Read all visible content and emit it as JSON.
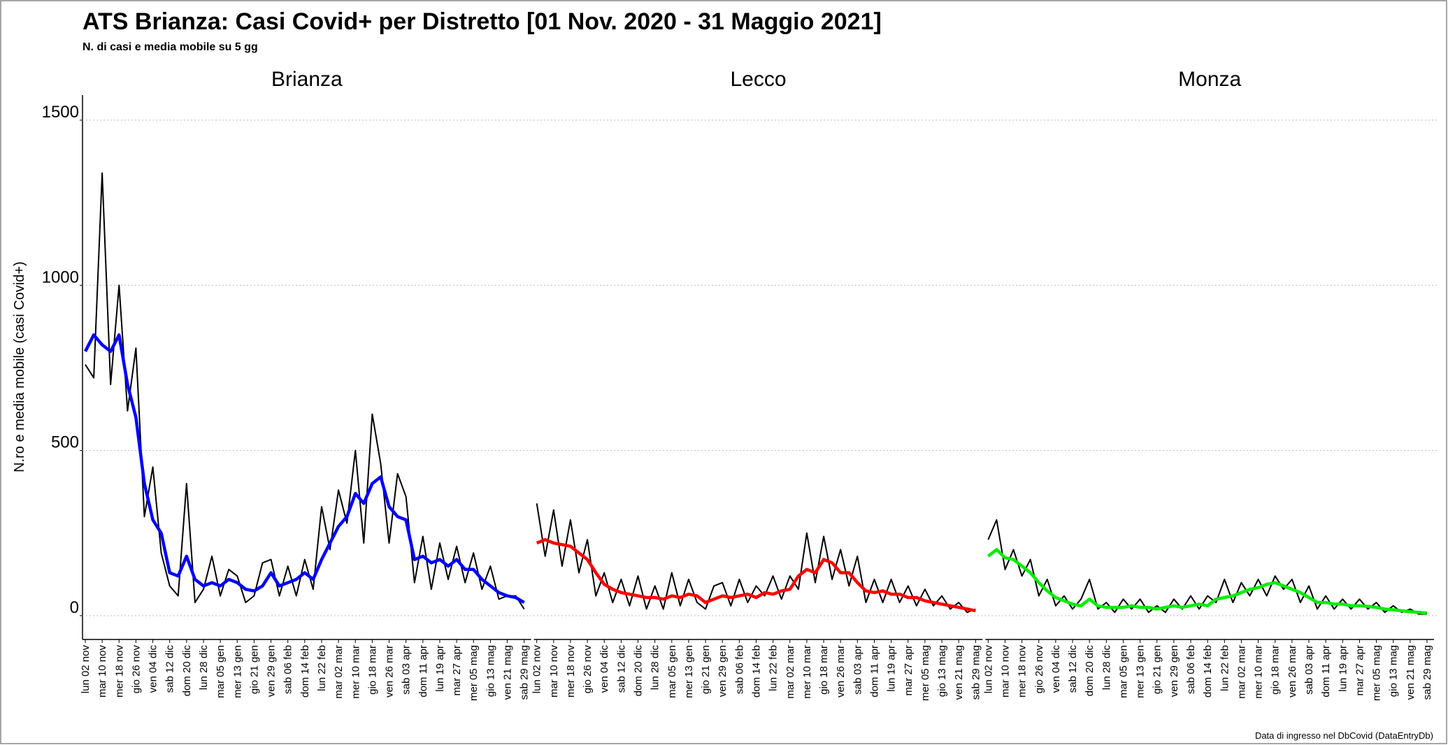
{
  "title": "ATS Brianza: Casi Covid+ per Distretto [01 Nov. 2020 - 31 Maggio 2021]",
  "subtitle": "N. di casi e media mobile su 5 gg",
  "footnote": "Data di ingresso nel DbCovid (DataEntryDb)",
  "y_axis": {
    "label": "N.ro e media mobile (casi Covid+)",
    "ylim": [
      -72,
      1576
    ],
    "yticks": [
      0,
      500,
      1000,
      1500
    ],
    "grid": true
  },
  "chart_data": [
    {
      "type": "line",
      "title": "Brianza",
      "categories": [
        "lun 02 nov",
        null,
        "mar 10 nov",
        null,
        "mer 18 nov",
        null,
        "gio 26 nov",
        null,
        "ven 04 dic",
        null,
        "sab 12 dic",
        null,
        "dom 20 dic",
        null,
        "lun 28 dic",
        null,
        "mar 05 gen",
        null,
        "mer 13 gen",
        null,
        "gio 21 gen",
        null,
        "ven 29 gen",
        null,
        "sab 06 feb",
        null,
        "dom 14 feb",
        null,
        "lun 22 feb",
        null,
        "mar 02 mar",
        null,
        "mer 10 mar",
        null,
        "gio 18 mar",
        null,
        "ven 26 mar",
        null,
        "sab 03 apr",
        null,
        "dom 11 apr",
        null,
        "lun 19 apr",
        null,
        "mar 27 apr",
        null,
        "mer 05 mag",
        null,
        "gio 13 mag",
        null,
        "ven 21 mag",
        null,
        "sab 29 mag"
      ],
      "series": [
        {
          "color": "#000000",
          "values": [
            760,
            720,
            1340,
            700,
            1000,
            620,
            810,
            300,
            450,
            190,
            90,
            60,
            400,
            40,
            80,
            180,
            60,
            140,
            120,
            40,
            60,
            160,
            170,
            60,
            150,
            60,
            170,
            80,
            330,
            200,
            380,
            280,
            500,
            220,
            610,
            460,
            220,
            430,
            360,
            100,
            240,
            80,
            220,
            110,
            210,
            100,
            190,
            80,
            150,
            50,
            60,
            60,
            20
          ]
        },
        {
          "color": "#0000ff",
          "values": [
            800,
            850,
            820,
            800,
            850,
            700,
            600,
            400,
            290,
            250,
            130,
            120,
            180,
            110,
            90,
            100,
            90,
            110,
            100,
            80,
            75,
            90,
            130,
            90,
            100,
            110,
            130,
            110,
            170,
            220,
            270,
            300,
            370,
            340,
            400,
            420,
            330,
            300,
            290,
            170,
            180,
            160,
            170,
            150,
            170,
            140,
            140,
            110,
            90,
            70,
            60,
            55,
            40
          ]
        }
      ]
    },
    {
      "type": "line",
      "title": "Lecco",
      "categories": [
        "lun 02 nov",
        null,
        "mar 10 nov",
        null,
        "mer 18 nov",
        null,
        "gio 26 nov",
        null,
        "ven 04 dic",
        null,
        "sab 12 dic",
        null,
        "dom 20 dic",
        null,
        "lun 28 dic",
        null,
        "mar 05 gen",
        null,
        "mer 13 gen",
        null,
        "gio 21 gen",
        null,
        "ven 29 gen",
        null,
        "sab 06 feb",
        null,
        "dom 14 feb",
        null,
        "lun 22 feb",
        null,
        "mar 02 mar",
        null,
        "mer 10 mar",
        null,
        "gio 18 mar",
        null,
        "ven 26 mar",
        null,
        "sab 03 apr",
        null,
        "dom 11 apr",
        null,
        "lun 19 apr",
        null,
        "mar 27 apr",
        null,
        "mer 05 mag",
        null,
        "gio 13 mag",
        null,
        "ven 21 mag",
        null,
        "sab 29 mag"
      ],
      "series": [
        {
          "color": "#000000",
          "values": [
            340,
            180,
            320,
            150,
            290,
            130,
            230,
            60,
            130,
            40,
            110,
            30,
            120,
            20,
            90,
            20,
            130,
            30,
            110,
            40,
            20,
            90,
            100,
            30,
            110,
            40,
            90,
            60,
            120,
            50,
            120,
            80,
            250,
            100,
            240,
            110,
            200,
            90,
            180,
            40,
            110,
            40,
            110,
            40,
            90,
            30,
            80,
            30,
            60,
            20,
            40,
            10,
            20
          ]
        },
        {
          "color": "#ff0000",
          "values": [
            220,
            230,
            220,
            215,
            210,
            190,
            170,
            130,
            95,
            80,
            70,
            65,
            60,
            55,
            55,
            50,
            60,
            55,
            65,
            60,
            40,
            50,
            60,
            55,
            60,
            65,
            55,
            70,
            65,
            75,
            80,
            120,
            140,
            130,
            170,
            160,
            130,
            130,
            100,
            75,
            70,
            75,
            65,
            65,
            55,
            55,
            45,
            40,
            35,
            30,
            25,
            20,
            15
          ]
        }
      ]
    },
    {
      "type": "line",
      "title": "Monza",
      "categories": [
        "lun 02 nov",
        null,
        "mar 10 nov",
        null,
        "mer 18 nov",
        null,
        "gio 26 nov",
        null,
        "ven 04 dic",
        null,
        "sab 12 dic",
        null,
        "dom 20 dic",
        null,
        "lun 28 dic",
        null,
        "mar 05 gen",
        null,
        "mer 13 gen",
        null,
        "gio 21 gen",
        null,
        "ven 29 gen",
        null,
        "sab 06 feb",
        null,
        "dom 14 feb",
        null,
        "lun 22 feb",
        null,
        "mar 02 mar",
        null,
        "mer 10 mar",
        null,
        "gio 18 mar",
        null,
        "ven 26 mar",
        null,
        "sab 03 apr",
        null,
        "dom 11 apr",
        null,
        "lun 19 apr",
        null,
        "mar 27 apr",
        null,
        "mer 05 mag",
        null,
        "gio 13 mag",
        null,
        "ven 21 mag",
        null,
        "sab 29 mag"
      ],
      "series": [
        {
          "color": "#000000",
          "values": [
            230,
            290,
            140,
            200,
            120,
            170,
            60,
            110,
            30,
            60,
            20,
            50,
            110,
            20,
            40,
            10,
            50,
            20,
            50,
            10,
            30,
            10,
            50,
            20,
            60,
            20,
            60,
            40,
            110,
            40,
            100,
            60,
            110,
            60,
            120,
            80,
            110,
            40,
            90,
            20,
            60,
            20,
            50,
            20,
            50,
            20,
            40,
            10,
            30,
            10,
            20,
            5,
            5
          ]
        },
        {
          "color": "#00ee00",
          "values": [
            180,
            200,
            175,
            170,
            150,
            130,
            100,
            75,
            55,
            45,
            35,
            30,
            50,
            30,
            25,
            25,
            25,
            30,
            25,
            25,
            20,
            25,
            30,
            25,
            30,
            35,
            30,
            50,
            55,
            60,
            70,
            80,
            85,
            95,
            100,
            90,
            80,
            70,
            55,
            40,
            40,
            35,
            35,
            30,
            30,
            28,
            25,
            20,
            18,
            15,
            12,
            10,
            8
          ]
        }
      ]
    }
  ]
}
